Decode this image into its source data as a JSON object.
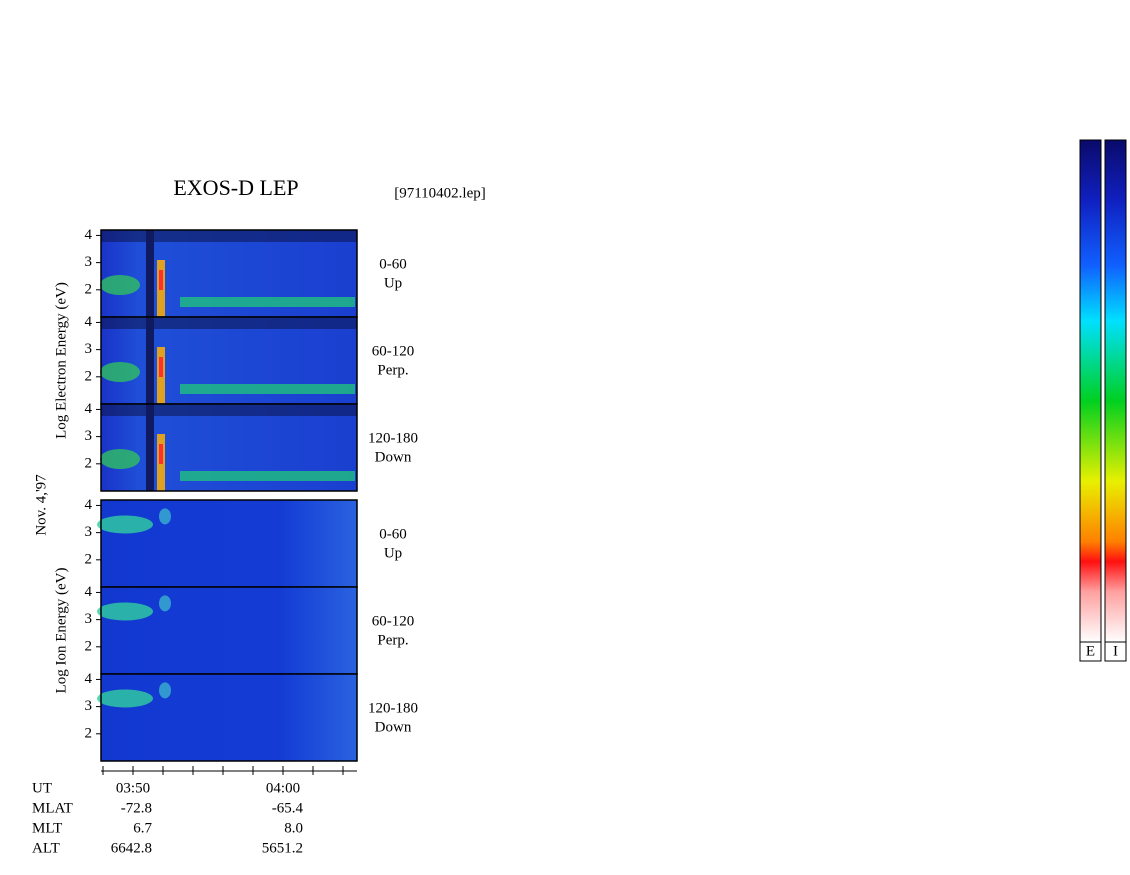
{
  "title": "EXOS-D LEP",
  "file_label": "[97110402.lep]",
  "date_label": "Nov. 4,'97",
  "groups": [
    {
      "axis_label": "Log  Electron  Energy  (eV)",
      "panels": [
        {
          "angle": "0-60",
          "direction": "Up",
          "ylim": [
            1,
            4.2
          ],
          "yticks": [
            2,
            3,
            4
          ]
        },
        {
          "angle": "60-120",
          "direction": "Perp.",
          "ylim": [
            1,
            4.2
          ],
          "yticks": [
            2,
            3,
            4
          ]
        },
        {
          "angle": "120-180",
          "direction": "Down",
          "ylim": [
            1,
            4.2
          ],
          "yticks": [
            2,
            3,
            4
          ]
        }
      ]
    },
    {
      "axis_label": "Log  Ion  Energy  (eV)",
      "panels": [
        {
          "angle": "0-60",
          "direction": "Up",
          "ylim": [
            1,
            4.2
          ],
          "yticks": [
            2,
            3,
            4
          ]
        },
        {
          "angle": "60-120",
          "direction": "Perp.",
          "ylim": [
            1,
            4.2
          ],
          "yticks": [
            2,
            3,
            4
          ]
        },
        {
          "angle": "120-180",
          "direction": "Down",
          "ylim": [
            1,
            4.2
          ],
          "yticks": [
            2,
            3,
            4
          ]
        }
      ]
    }
  ],
  "ephemeris": {
    "rows": [
      [
        "UT",
        "03:50",
        "04:00"
      ],
      [
        "MLAT",
        "-72.8",
        "-65.4"
      ],
      [
        "MLT",
        "6.7",
        "8.0"
      ],
      [
        "ALT",
        "6642.8",
        "5651.2"
      ]
    ]
  },
  "colorbars": [
    "E",
    "I"
  ]
}
